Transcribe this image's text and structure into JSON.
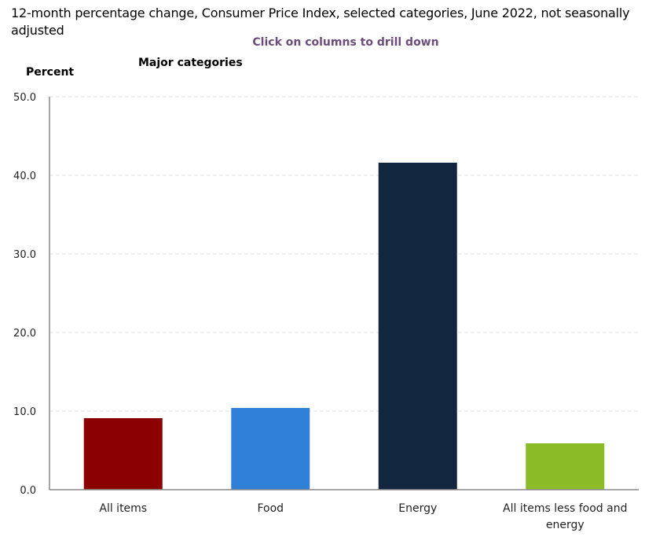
{
  "chart_data": {
    "type": "bar",
    "title": "12-month percentage change, Consumer Price Index, selected categories, June 2022, not seasonally adjusted",
    "subtitle": "Click on columns to drill down",
    "section_label": "Major categories",
    "xlabel": "",
    "ylabel": "Percent",
    "ylim": [
      0,
      50
    ],
    "yticks": [
      "0.0",
      "10.0",
      "20.0",
      "30.0",
      "40.0",
      "50.0"
    ],
    "ytick_values": [
      0,
      10,
      20,
      30,
      40,
      50
    ],
    "grid": true,
    "categories": [
      [
        "All items"
      ],
      [
        "Food"
      ],
      [
        "Energy"
      ],
      [
        "All items less food and",
        "energy"
      ]
    ],
    "values": [
      9.1,
      10.4,
      41.6,
      5.9
    ],
    "colors": [
      "#8b0000",
      "#3080d8",
      "#12263f",
      "#8bbb26"
    ]
  }
}
